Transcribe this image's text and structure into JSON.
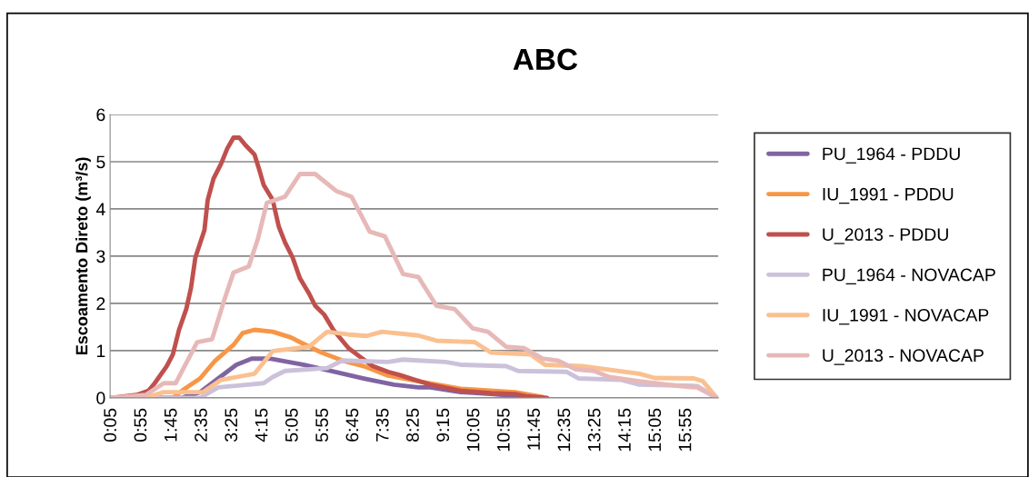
{
  "chart_data": {
    "type": "line",
    "title": "ABC",
    "ylabel": "Escoamento Direto (m³/s)",
    "xlim": [
      0.0417,
      16.7917
    ],
    "xticks": [
      {
        "value": 0.0833,
        "label": "0:05"
      },
      {
        "value": 0.9167,
        "label": "0:55"
      },
      {
        "value": 1.75,
        "label": "1:45"
      },
      {
        "value": 2.5833,
        "label": "2:35"
      },
      {
        "value": 3.4167,
        "label": "3:25"
      },
      {
        "value": 4.25,
        "label": "4:15"
      },
      {
        "value": 5.0833,
        "label": "5:05"
      },
      {
        "value": 5.9167,
        "label": "5:55"
      },
      {
        "value": 6.75,
        "label": "6:45"
      },
      {
        "value": 7.5833,
        "label": "7:35"
      },
      {
        "value": 8.4167,
        "label": "8:25"
      },
      {
        "value": 9.25,
        "label": "9:15"
      },
      {
        "value": 10.0833,
        "label": "10:05"
      },
      {
        "value": 10.9167,
        "label": "10:55"
      },
      {
        "value": 11.75,
        "label": "11:45"
      },
      {
        "value": 12.5833,
        "label": "12:35"
      },
      {
        "value": 13.4167,
        "label": "13:25"
      },
      {
        "value": 14.25,
        "label": "14:15"
      },
      {
        "value": 15.0833,
        "label": "15:05"
      },
      {
        "value": 15.9167,
        "label": "15:55"
      }
    ],
    "ylim": [
      0,
      6
    ],
    "yticks": [
      0,
      1,
      2,
      3,
      4,
      5,
      6
    ],
    "grid": "y",
    "legend": "right",
    "marker": "none",
    "line_style": "solid",
    "series": [
      {
        "name": "PU_1964 - PDDU",
        "color": "#8064a2",
        "x": [
          0.0833,
          2.02,
          2.52,
          3.02,
          3.52,
          3.94,
          4.44,
          5.36,
          6.11,
          7.03,
          7.86,
          8.53,
          8.86,
          9.7,
          10.53,
          11.2,
          11.62
        ],
        "values": [
          0,
          0,
          0.12,
          0.41,
          0.7,
          0.83,
          0.83,
          0.7,
          0.57,
          0.41,
          0.28,
          0.22,
          0.22,
          0.12,
          0.08,
          0.04,
          0
        ]
      },
      {
        "name": "IU_1991 - PDDU",
        "color": "#f79646",
        "x": [
          0.0833,
          1.77,
          2.02,
          2.52,
          2.94,
          3.44,
          3.69,
          4.02,
          4.52,
          5.02,
          5.27,
          5.86,
          6.44,
          7.03,
          7.7,
          8.53,
          9.7,
          11.2,
          11.95
        ],
        "values": [
          0,
          0,
          0.15,
          0.41,
          0.79,
          1.12,
          1.37,
          1.44,
          1.4,
          1.28,
          1.18,
          0.96,
          0.79,
          0.67,
          0.47,
          0.35,
          0.19,
          0.12,
          0.02
        ]
      },
      {
        "name": "U_2013 - PDDU",
        "color": "#c0504d",
        "x": [
          0.0833,
          0.77,
          1.1,
          1.27,
          1.6,
          1.77,
          1.94,
          2.14,
          2.27,
          2.39,
          2.64,
          2.73,
          2.89,
          3.1,
          3.27,
          3.44,
          3.6,
          3.77,
          4.02,
          4.15,
          4.27,
          4.52,
          4.69,
          4.86,
          5.07,
          5.27,
          5.52,
          5.69,
          5.94,
          6.19,
          6.61,
          6.94,
          7.28,
          7.7,
          8.03,
          8.36,
          8.86,
          9.7,
          10.53,
          11.2,
          11.54,
          12.08
        ],
        "values": [
          0,
          0.06,
          0.15,
          0.31,
          0.67,
          0.92,
          1.44,
          1.88,
          2.33,
          2.97,
          3.55,
          4.19,
          4.64,
          4.96,
          5.28,
          5.51,
          5.51,
          5.35,
          5.15,
          4.83,
          4.51,
          4.19,
          3.62,
          3.29,
          2.97,
          2.53,
          2.21,
          1.95,
          1.76,
          1.44,
          1.05,
          0.86,
          0.67,
          0.55,
          0.48,
          0.4,
          0.28,
          0.15,
          0.1,
          0.08,
          0.03,
          0
        ]
      },
      {
        "name": "PU_1964 - NOVACAP",
        "color": "#ccc1da",
        "x": [
          0.0833,
          2.52,
          3.02,
          4.27,
          4.52,
          4.86,
          6.02,
          6.44,
          7.7,
          8.11,
          8.53,
          9.28,
          9.7,
          10.95,
          11.28,
          12.62,
          12.95,
          14.12,
          14.62,
          16.21,
          16.75
        ],
        "values": [
          0,
          0,
          0.22,
          0.31,
          0.44,
          0.57,
          0.63,
          0.79,
          0.76,
          0.81,
          0.79,
          0.76,
          0.7,
          0.67,
          0.57,
          0.55,
          0.41,
          0.38,
          0.28,
          0.25,
          0
        ]
      },
      {
        "name": "IU_1991 - NOVACAP",
        "color": "#fac090",
        "x": [
          0.0833,
          1.02,
          1.52,
          2.6,
          3.1,
          4.02,
          4.52,
          5.52,
          6.02,
          6.61,
          7.11,
          7.53,
          8.53,
          9.03,
          10.08,
          10.53,
          11.62,
          12.02,
          13.04,
          14.62,
          15.04,
          16.12,
          16.37,
          16.75
        ],
        "values": [
          0,
          0,
          0.12,
          0.12,
          0.38,
          0.51,
          0.99,
          1.08,
          1.4,
          1.34,
          1.31,
          1.4,
          1.32,
          1.21,
          1.18,
          0.96,
          0.92,
          0.7,
          0.67,
          0.51,
          0.42,
          0.41,
          0.35,
          0
        ]
      },
      {
        "name": "U_2013 - NOVACAP",
        "color": "#e6b9b8",
        "x": [
          0.0833,
          1.02,
          1.52,
          1.85,
          2.44,
          2.85,
          3.19,
          3.44,
          3.86,
          4.11,
          4.36,
          4.86,
          5.27,
          5.69,
          6.27,
          6.69,
          7.19,
          7.61,
          8.11,
          8.53,
          9.03,
          9.53,
          10.03,
          10.45,
          10.95,
          11.45,
          11.95,
          12.37,
          12.87,
          13.37,
          13.79,
          14.62,
          15.71,
          16.21,
          16.75
        ],
        "values": [
          0,
          0.06,
          0.31,
          0.31,
          1.18,
          1.24,
          2.08,
          2.65,
          2.78,
          3.36,
          4.13,
          4.26,
          4.74,
          4.74,
          4.38,
          4.26,
          3.52,
          3.42,
          2.62,
          2.56,
          1.95,
          1.88,
          1.47,
          1.4,
          1.08,
          1.05,
          0.83,
          0.79,
          0.6,
          0.57,
          0.44,
          0.35,
          0.25,
          0.22,
          0
        ]
      }
    ]
  }
}
